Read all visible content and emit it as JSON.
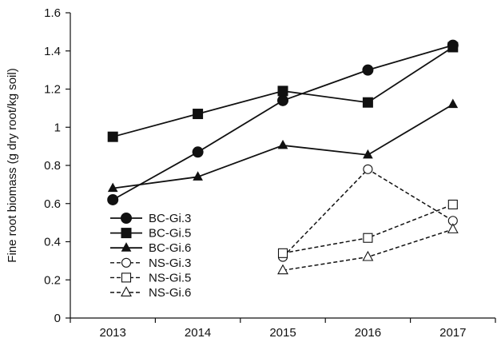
{
  "chart_data": {
    "type": "line",
    "title": "",
    "xlabel": "",
    "ylabel": "Fine root biomass (g dry root/kg soil)",
    "categories": [
      "2013",
      "2014",
      "2015",
      "2016",
      "2017"
    ],
    "ylim": [
      0,
      1.6
    ],
    "yticks": [
      "0",
      "0.2",
      "0.4",
      "0.6",
      "0.8",
      "1",
      "1.2",
      "1.4",
      "1.6"
    ],
    "grid": false,
    "legend_position": "bottom-left",
    "series": [
      {
        "name": "BC-Gi.3",
        "marker": "circle",
        "filled": true,
        "dashed": false,
        "values": [
          0.62,
          0.87,
          1.14,
          1.3,
          1.43
        ]
      },
      {
        "name": "BC-Gi.5",
        "marker": "square",
        "filled": true,
        "dashed": false,
        "values": [
          0.95,
          1.07,
          1.19,
          1.13,
          1.42
        ]
      },
      {
        "name": "BC-Gi.6",
        "marker": "triangle",
        "filled": true,
        "dashed": false,
        "values": [
          0.68,
          0.74,
          0.905,
          0.855,
          1.12
        ]
      },
      {
        "name": "NS-Gi.3",
        "marker": "circle",
        "filled": false,
        "dashed": true,
        "values": [
          null,
          null,
          0.32,
          0.78,
          0.51
        ]
      },
      {
        "name": "NS-Gi.5",
        "marker": "square",
        "filled": false,
        "dashed": true,
        "values": [
          null,
          null,
          0.34,
          0.42,
          0.595
        ]
      },
      {
        "name": "NS-Gi.6",
        "marker": "triangle",
        "filled": false,
        "dashed": true,
        "values": [
          null,
          null,
          0.25,
          0.32,
          0.465
        ]
      }
    ]
  }
}
